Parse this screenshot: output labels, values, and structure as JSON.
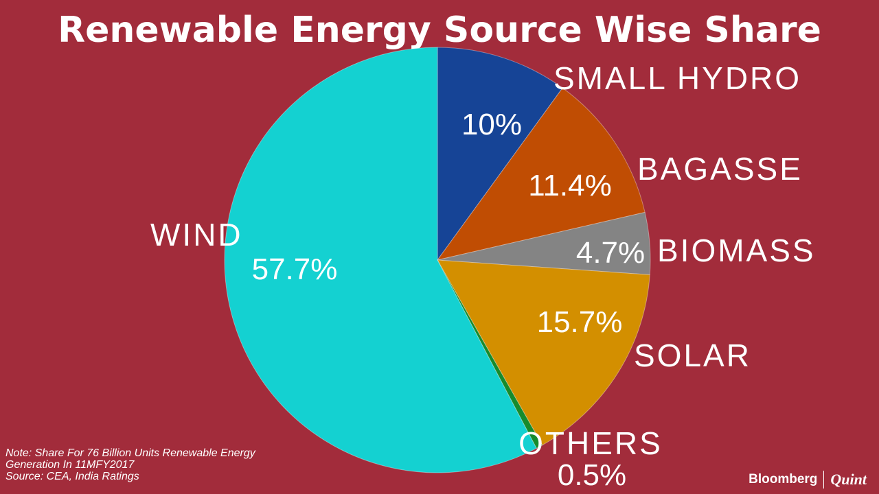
{
  "chart_data": {
    "type": "pie",
    "title": "Renewable Energy Source Wise Share",
    "slices": [
      {
        "label": "SMALL HYDRO",
        "value": 10,
        "value_label": "10%",
        "color": "#164496"
      },
      {
        "label": "BAGASSE",
        "value": 11.4,
        "value_label": "11.4%",
        "color": "#c04d03"
      },
      {
        "label": "BIOMASS",
        "value": 4.7,
        "value_label": "4.7%",
        "color": "#848484"
      },
      {
        "label": "SOLAR",
        "value": 15.7,
        "value_label": "15.7%",
        "color": "#d38f00"
      },
      {
        "label": "OTHERS",
        "value": 0.5,
        "value_label": "0.5%",
        "color": "#168b2c"
      },
      {
        "label": "WIND",
        "value": 57.7,
        "value_label": "57.7%",
        "color": "#14d1d1"
      }
    ]
  },
  "footer": {
    "note_line1": "Note: Share For 76 Billion Units Renewable Energy",
    "note_line2": "Generation In 11MFY2017",
    "source": "Source: CEA, India Ratings"
  },
  "brand": {
    "name_left": "Bloomberg",
    "name_right": "Quint"
  },
  "colors": {
    "background": "#a22c3b"
  }
}
